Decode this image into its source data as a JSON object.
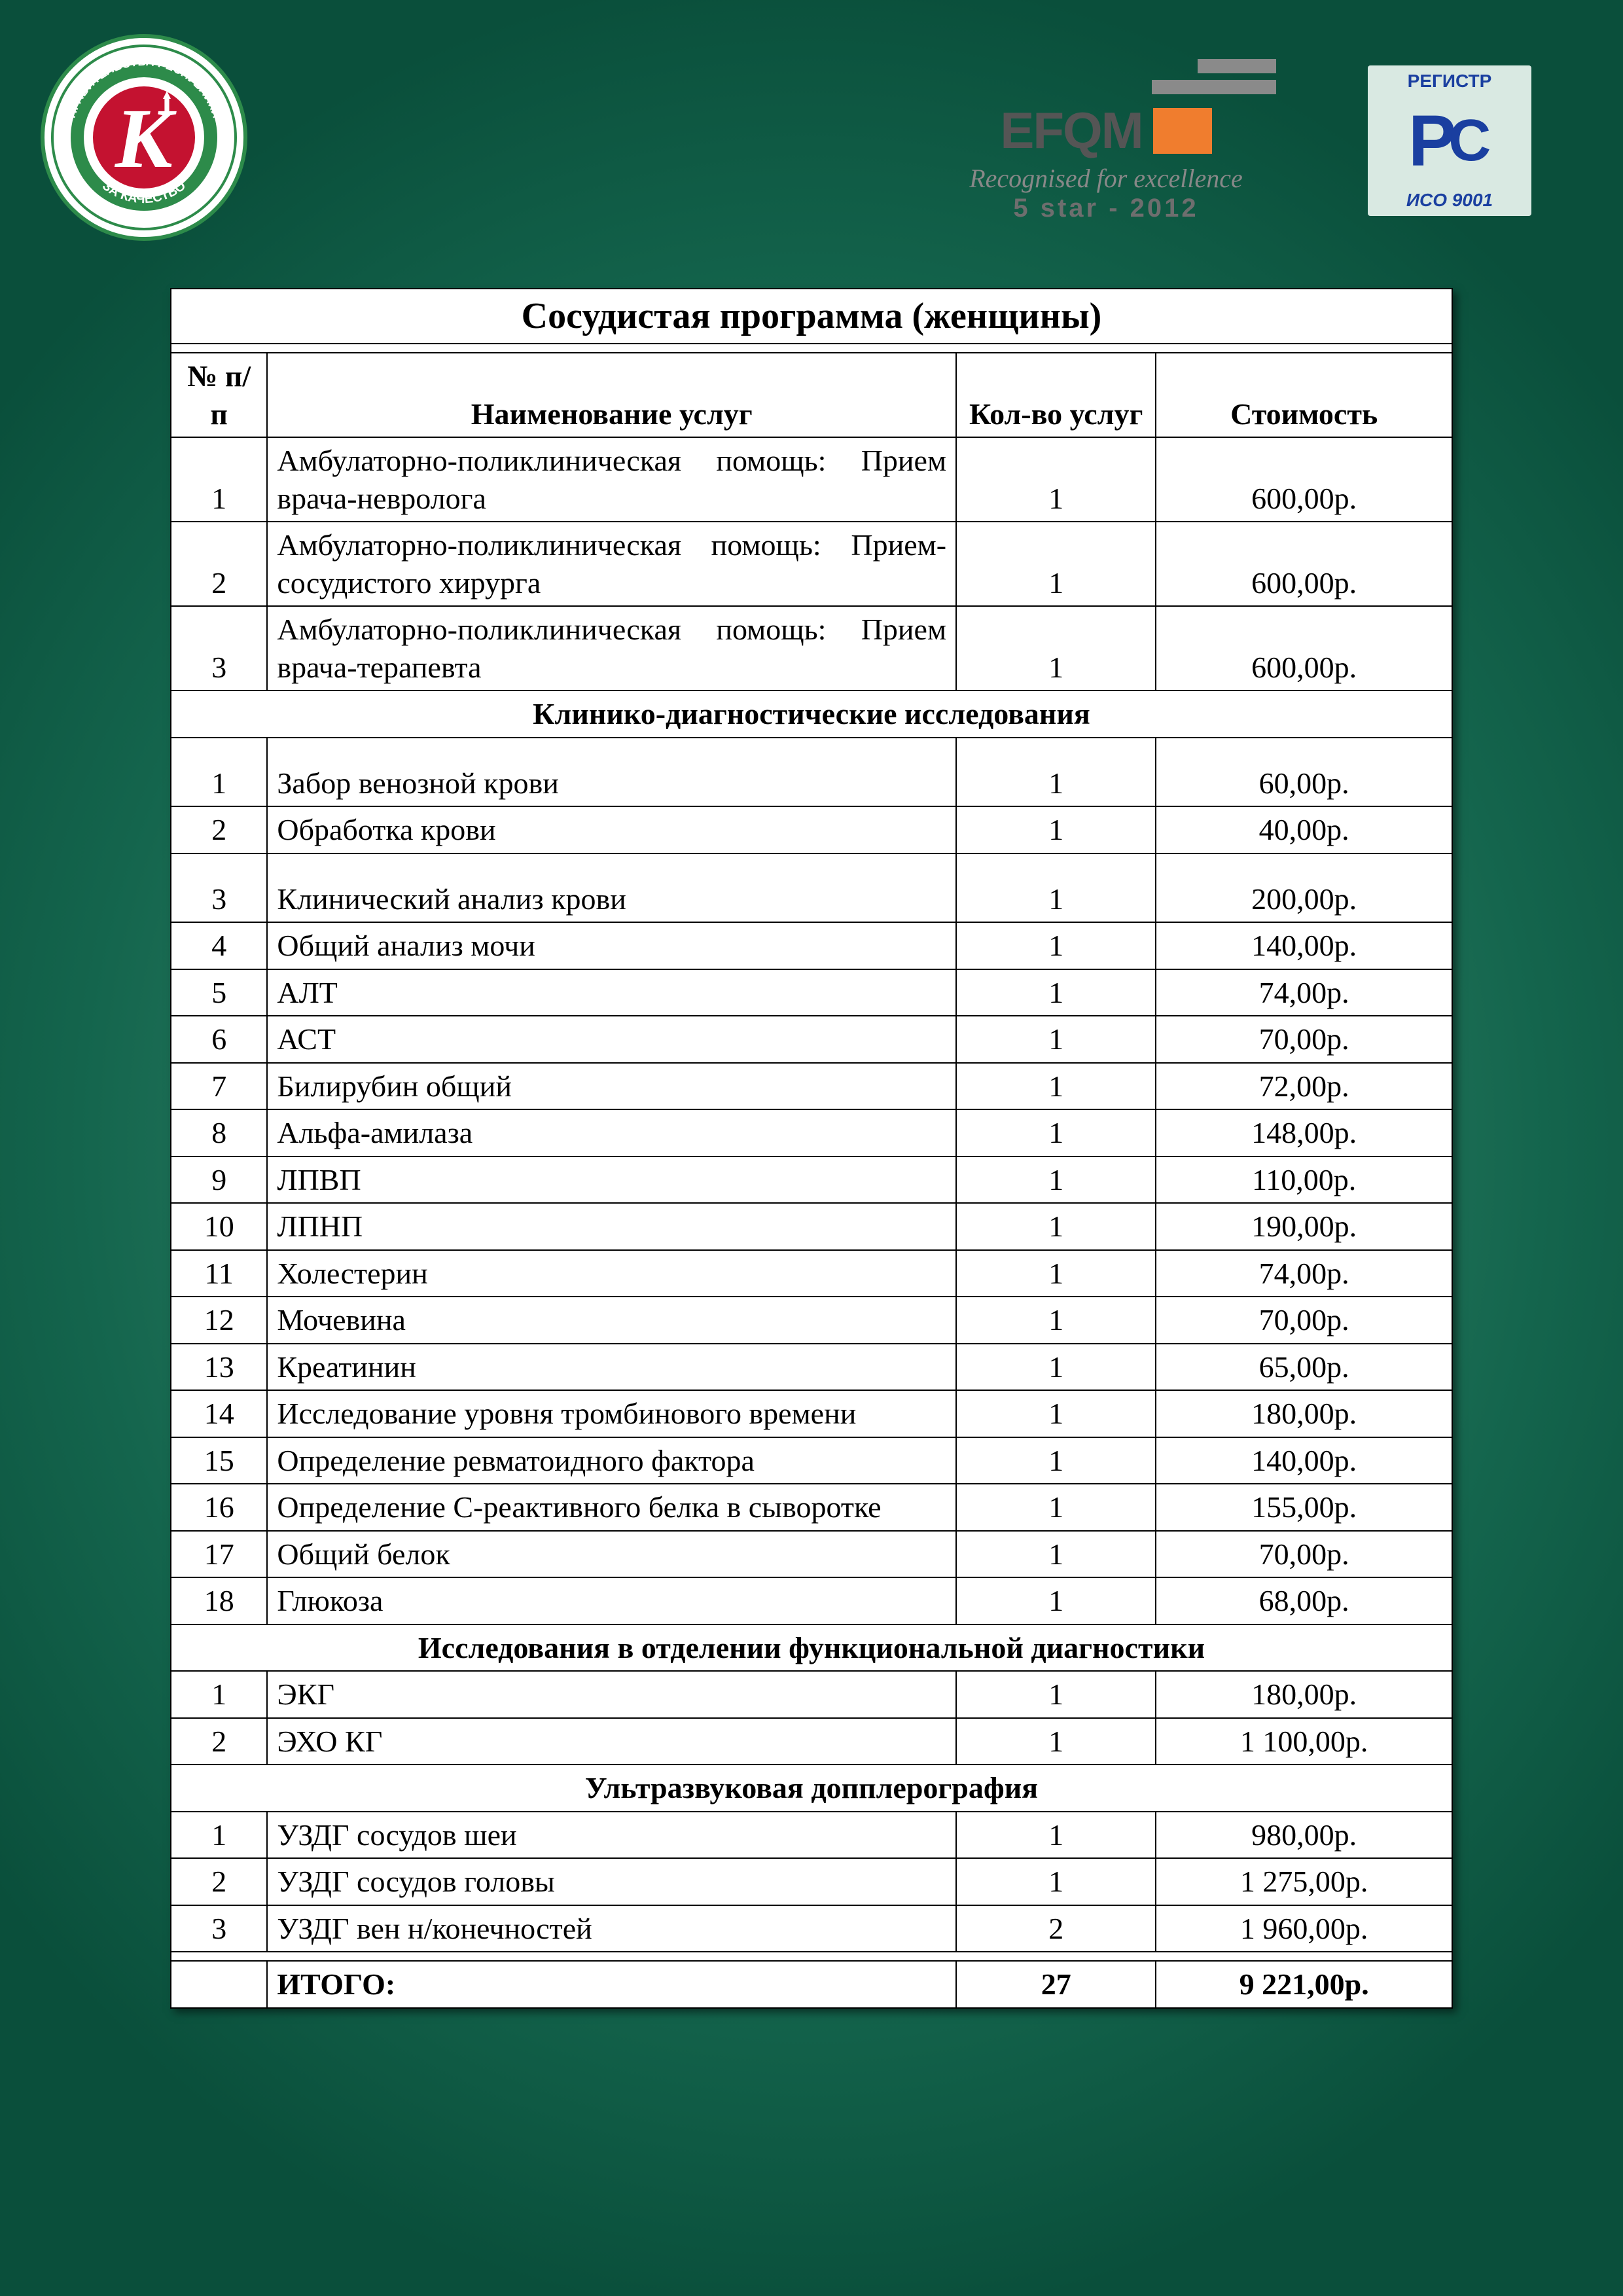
{
  "logos": {
    "tatarstan_text_top": "ПРАВИТЕЛЬСТВА РЕСПУБЛИКИ",
    "tatarstan_text_side": "ТАТАРСТАН",
    "tatarstan_text_bottom": "ЗА КАЧЕСТВО",
    "tatarstan_letter": "К",
    "efqm_brand": "EFQM",
    "efqm_tagline": "Recognised for excellence",
    "efqm_stars": "5 star - 2012",
    "iso_top": "РЕГИСТР",
    "iso_main": "РС",
    "iso_bottom": "ИСО 9001"
  },
  "document": {
    "title": "Сосудистая программа (женщины)",
    "columns": {
      "num": "№ п/п",
      "name": "Наименование услуг",
      "qty": "Кол-во услуг",
      "price": "Стоимость"
    },
    "groups": [
      {
        "heading": null,
        "heading_style": "none",
        "rows": [
          {
            "num": "1",
            "name": "Амбулаторно-поликлиническая помощь: Прием врача-невролога",
            "qty": "1",
            "price": "600,00р.",
            "multiline": true
          },
          {
            "num": "2",
            "name": "Амбулаторно-поликлиническая помощь: Прием-сосудистого хирурга",
            "qty": "1",
            "price": "600,00р.",
            "multiline": true
          },
          {
            "num": "3",
            "name": "Амбулаторно-поликлиническая помощь: Прием врача-терапевта",
            "qty": "1",
            "price": "600,00р.",
            "multiline": true
          }
        ]
      },
      {
        "heading": "Клинико-диагностические исследования",
        "heading_style": "tall",
        "rows": [
          {
            "num": "1",
            "name": "Забор венозной крови",
            "qty": "1",
            "price": "60,00р.",
            "tall": true
          },
          {
            "num": "2",
            "name": "Обработка крови",
            "qty": "1",
            "price": "40,00р."
          },
          {
            "num": "3",
            "name": "Клинический анализ крови",
            "qty": "1",
            "price": "200,00р.",
            "tall": true
          },
          {
            "num": "4",
            "name": "Общий анализ мочи",
            "qty": "1",
            "price": "140,00р."
          },
          {
            "num": "5",
            "name": "АЛТ",
            "qty": "1",
            "price": "74,00р."
          },
          {
            "num": "6",
            "name": "АСТ",
            "qty": "1",
            "price": "70,00р."
          },
          {
            "num": "7",
            "name": "Билирубин общий",
            "qty": "1",
            "price": "72,00р."
          },
          {
            "num": "8",
            "name": "Альфа-амилаза",
            "qty": "1",
            "price": "148,00р."
          },
          {
            "num": "9",
            "name": "ЛПВП",
            "qty": "1",
            "price": "110,00р."
          },
          {
            "num": "10",
            "name": "ЛПНП",
            "qty": "1",
            "price": "190,00р."
          },
          {
            "num": "11",
            "name": "Холестерин",
            "qty": "1",
            "price": "74,00р."
          },
          {
            "num": "12",
            "name": "Мочевина",
            "qty": "1",
            "price": "70,00р."
          },
          {
            "num": "13",
            "name": "Креатинин",
            "qty": "1",
            "price": "65,00р."
          },
          {
            "num": "14",
            "name": "Исследование уровня тромбинового времени",
            "qty": "1",
            "price": "180,00р."
          },
          {
            "num": "15",
            "name": "Определение ревматоидного фактора",
            "qty": "1",
            "price": "140,00р."
          },
          {
            "num": "16",
            "name": "Определение С-реактивного белка в сыворотке",
            "qty": "1",
            "price": "155,00р."
          },
          {
            "num": "17",
            "name": "Общий белок",
            "qty": "1",
            "price": "70,00р."
          },
          {
            "num": "18",
            "name": "Глюкоза",
            "qty": "1",
            "price": "68,00р."
          }
        ]
      },
      {
        "heading": "Исследования в отделении функциональной диагностики",
        "heading_style": "tight",
        "rows": [
          {
            "num": "1",
            "name": "ЭКГ",
            "qty": "1",
            "price": "180,00р."
          },
          {
            "num": "2",
            "name": "ЭХО КГ",
            "qty": "1",
            "price": "1 100,00р."
          }
        ]
      },
      {
        "heading": "Ультразвуковая допплерография",
        "heading_style": "tight",
        "rows": [
          {
            "num": "1",
            "name": "УЗДГ сосудов шеи",
            "qty": "1",
            "price": "980,00р."
          },
          {
            "num": "2",
            "name": "УЗДГ сосудов головы",
            "qty": "1",
            "price": "1 275,00р."
          },
          {
            "num": "3",
            "name": "УЗДГ вен н/конечностей",
            "qty": "2",
            "price": "1 960,00р."
          }
        ]
      }
    ],
    "total": {
      "label": "ИТОГО:",
      "qty": "27",
      "price": "9 221,00р."
    }
  },
  "style": {
    "background_gradient": [
      "#4fa888",
      "#2d8065",
      "#14654d",
      "#0a4f3b"
    ],
    "panel_bg": "#ffffff",
    "border_color": "#000000",
    "font_body_pt": 46,
    "font_title_pt": 56,
    "efqm_orange": "#f07d2e",
    "iso_blue": "#1a3fa0",
    "tatarstan_red": "#c41230",
    "tatarstan_green": "#2d8b4a"
  }
}
